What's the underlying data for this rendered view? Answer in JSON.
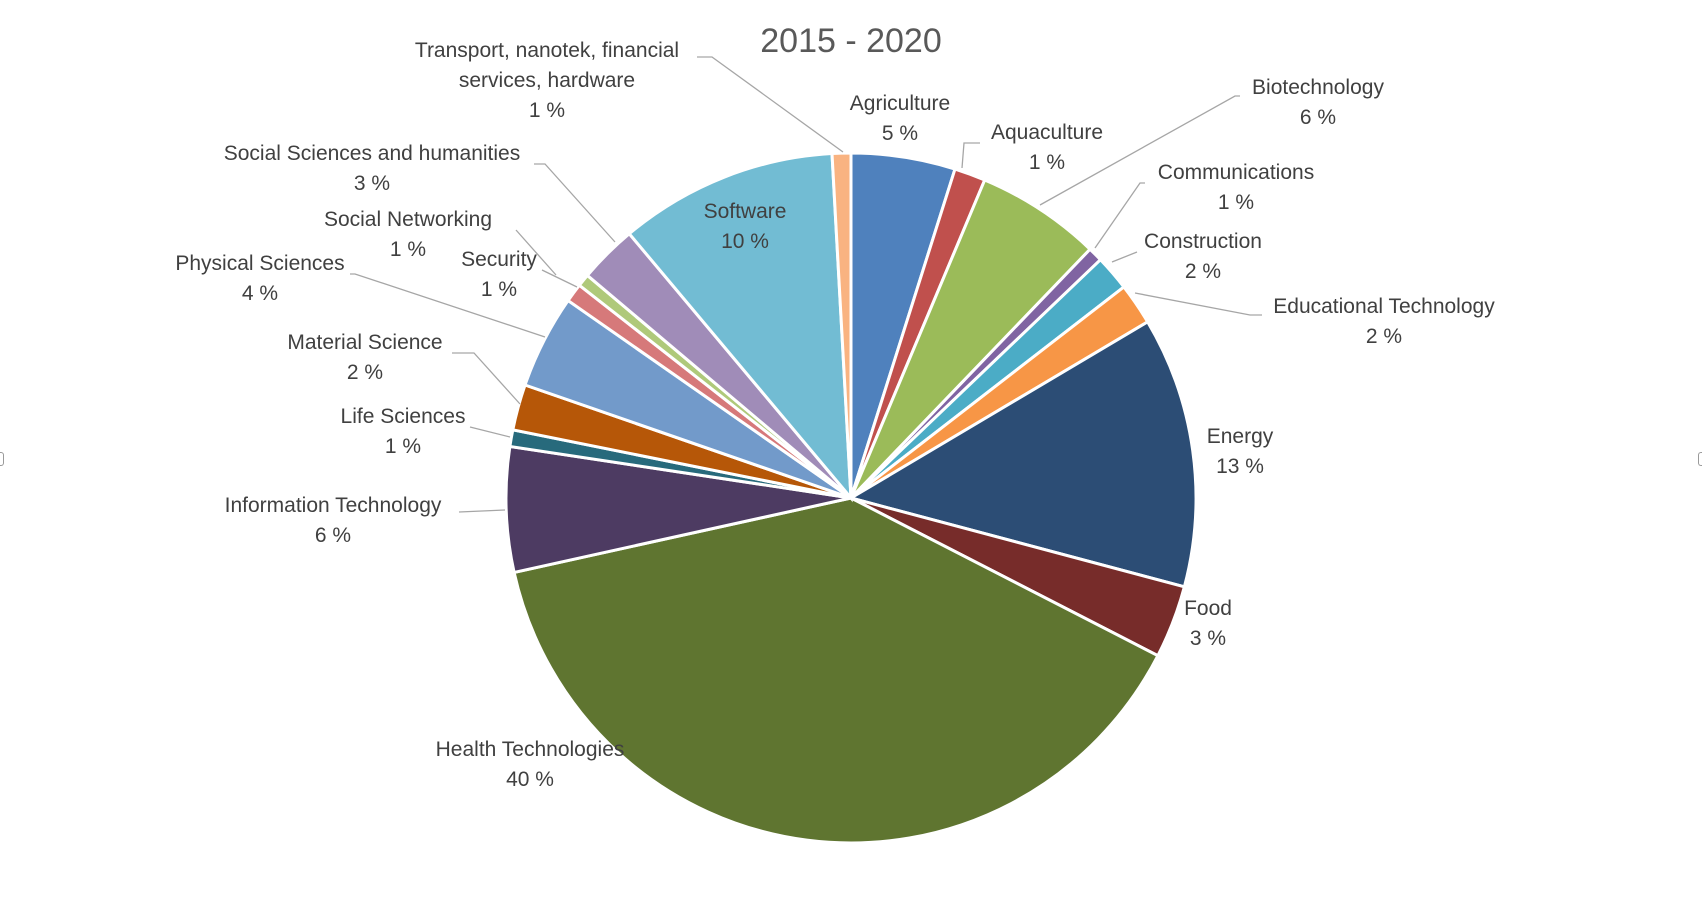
{
  "chart_data": {
    "type": "pie",
    "title": "2015 - 2020",
    "start_angle_deg": 0,
    "direction": "clockwise",
    "slices": [
      {
        "label": "Agriculture",
        "value": 5,
        "value_label": "5 %",
        "color": "#4f81bd"
      },
      {
        "label": "Aquaculture",
        "value": 1.5,
        "value_label": "1 %",
        "color": "#c0504d"
      },
      {
        "label": "Biotechnology",
        "value": 6,
        "value_label": "6 %",
        "color": "#9bbb59"
      },
      {
        "label": "Communications",
        "value": 0.7,
        "value_label": "1 %",
        "color": "#8064a2"
      },
      {
        "label": "Construction",
        "value": 1.7,
        "value_label": "2 %",
        "color": "#4bacc6"
      },
      {
        "label": "Educational Technology",
        "value": 2,
        "value_label": "2 %",
        "color": "#f79646"
      },
      {
        "label": "Energy",
        "value": 13,
        "value_label": "13 %",
        "color": "#2c4d75"
      },
      {
        "label": "Food",
        "value": 3.5,
        "value_label": "3 %",
        "color": "#772c2a"
      },
      {
        "label": "Health Technologies",
        "value": 40,
        "value_label": "40 %",
        "color": "#5f7530"
      },
      {
        "label": "Information Technology",
        "value": 6,
        "value_label": "6 %",
        "color": "#4d3b62"
      },
      {
        "label": "Life Sciences",
        "value": 0.8,
        "value_label": "1 %",
        "color": "#276a7c"
      },
      {
        "label": "Material Science",
        "value": 2.2,
        "value_label": "2 %",
        "color": "#b65708"
      },
      {
        "label": "Physical Sciences",
        "value": 4.5,
        "value_label": "4 %",
        "color": "#729aca"
      },
      {
        "label": "Security",
        "value": 0.9,
        "value_label": "1 %",
        "color": "#d6797a"
      },
      {
        "label": "Social Networking",
        "value": 0.6,
        "value_label": "1 %",
        "color": "#afc97a"
      },
      {
        "label": "Social Sciences and humanities",
        "value": 2.8,
        "value_label": "3 %",
        "color": "#a08cb8"
      },
      {
        "label": "Software",
        "value": 10.5,
        "value_label": "10 %",
        "color": "#72bcd3"
      },
      {
        "label": "Transport, nanotek, financial services, hardware",
        "value": 0.9,
        "value_label": "1 %",
        "color": "#f9b381"
      }
    ]
  }
}
